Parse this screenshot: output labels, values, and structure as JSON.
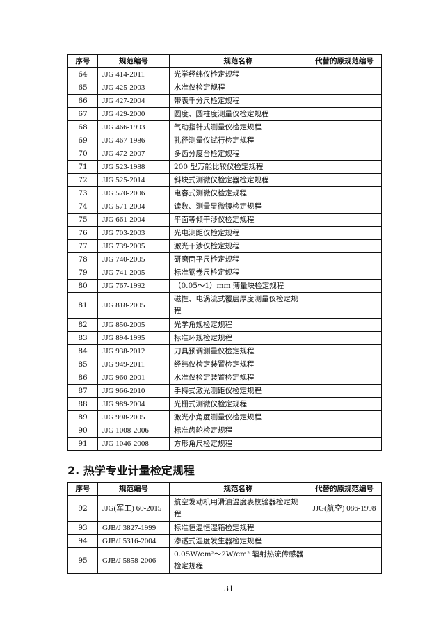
{
  "table1": {
    "headers": [
      "序号",
      "规范编号",
      "规范名称",
      "代替的原规范编号"
    ],
    "rows": [
      {
        "no": "64",
        "code": "JJG 414-2011",
        "name": "光学经纬仪检定规程",
        "replaced": ""
      },
      {
        "no": "65",
        "code": "JJG 425-2003",
        "name": "水准仪检定规程",
        "replaced": ""
      },
      {
        "no": "66",
        "code": "JJG 427-2004",
        "name": "带表千分尺检定规程",
        "replaced": ""
      },
      {
        "no": "67",
        "code": "JJG 429-2000",
        "name": "圆度、圆柱度测量仪检定规程",
        "replaced": ""
      },
      {
        "no": "68",
        "code": "JJG 466-1993",
        "name": "气动指针式测量仪检定规程",
        "replaced": ""
      },
      {
        "no": "69",
        "code": "JJG 467-1986",
        "name": "孔径测量仪试行检定规程",
        "replaced": ""
      },
      {
        "no": "70",
        "code": "JJG 472-2007",
        "name": "多齿分度台检定规程",
        "replaced": ""
      },
      {
        "no": "71",
        "code": "JJG 523-1988",
        "name": "200 型万能比较仪检定规程",
        "replaced": ""
      },
      {
        "no": "72",
        "code": "JJG 525-2014",
        "name": "斜块式测微仪检定器检定规程",
        "replaced": ""
      },
      {
        "no": "73",
        "code": "JJG 570-2006",
        "name": "电容式测微仪检定规程",
        "replaced": ""
      },
      {
        "no": "74",
        "code": "JJG 571-2004",
        "name": "读数、测量显微镜检定规程",
        "replaced": ""
      },
      {
        "no": "75",
        "code": "JJG 661-2004",
        "name": "平面等倾干涉仪检定规程",
        "replaced": ""
      },
      {
        "no": "76",
        "code": "JJG 703-2003",
        "name": "光电测距仪检定规程",
        "replaced": ""
      },
      {
        "no": "77",
        "code": "JJG 739-2005",
        "name": "激光干涉仪检定规程",
        "replaced": ""
      },
      {
        "no": "78",
        "code": "JJG 740-2005",
        "name": "研磨面平尺检定规程",
        "replaced": ""
      },
      {
        "no": "79",
        "code": "JJG 741-2005",
        "name": "标准钢卷尺检定规程",
        "replaced": ""
      },
      {
        "no": "80",
        "code": "JJG 767-1992",
        "name": "（0.05～1）mm 薄量块检定规程",
        "replaced": ""
      },
      {
        "no": "81",
        "code": "JJG 818-2005",
        "name": "磁性、电涡流式覆层厚度测量仪检定规程",
        "replaced": "",
        "double": true
      },
      {
        "no": "82",
        "code": "JJG 850-2005",
        "name": "光学角规检定规程",
        "replaced": ""
      },
      {
        "no": "83",
        "code": "JJG 894-1995",
        "name": "标准环规检定规程",
        "replaced": ""
      },
      {
        "no": "84",
        "code": "JJG 938-2012",
        "name": "刀具预调测量仪检定规程",
        "replaced": ""
      },
      {
        "no": "85",
        "code": "JJG 949-2011",
        "name": "经纬仪检定装置检定规程",
        "replaced": ""
      },
      {
        "no": "86",
        "code": "JJG 960-2001",
        "name": "水准仪检定装置检定规程",
        "replaced": ""
      },
      {
        "no": "87",
        "code": "JJG 966-2010",
        "name": "手持式激光测距仪检定规程",
        "replaced": ""
      },
      {
        "no": "88",
        "code": "JJG 989-2004",
        "name": "光栅式测微仪检定规程",
        "replaced": ""
      },
      {
        "no": "89",
        "code": "JJG 998-2005",
        "name": "激光小角度测量仪检定规程",
        "replaced": ""
      },
      {
        "no": "90",
        "code": "JJG 1008-2006",
        "name": "标准齿轮检定规程",
        "replaced": ""
      },
      {
        "no": "91",
        "code": "JJG 1046-2008",
        "name": "方形角尺检定规程",
        "replaced": ""
      }
    ]
  },
  "section2": {
    "title": "2. 热学专业计量检定规程",
    "headers": [
      "序号",
      "规范编号",
      "规范名称",
      "代替的原规范编号"
    ],
    "rows": [
      {
        "no": "92",
        "code": "JJG(军工) 60-2015",
        "name": "航空发动机用滑油温度表校验器检定规程",
        "replaced": "JJG(航空) 086-1998",
        "double": true
      },
      {
        "no": "93",
        "code": "GJB/J 3827-1999",
        "name": "标准恒温恒湿箱检定规程",
        "replaced": ""
      },
      {
        "no": "94",
        "code": "GJB/J 5316-2004",
        "name": "渗透式湿度发生器检定规程",
        "replaced": ""
      },
      {
        "no": "95",
        "code": "GJB/J 5858-2006",
        "name": "0.05W/cm²～2W/cm² 辐射热流传感器检定规程",
        "replaced": "",
        "double": true
      }
    ]
  },
  "page_number": "31"
}
